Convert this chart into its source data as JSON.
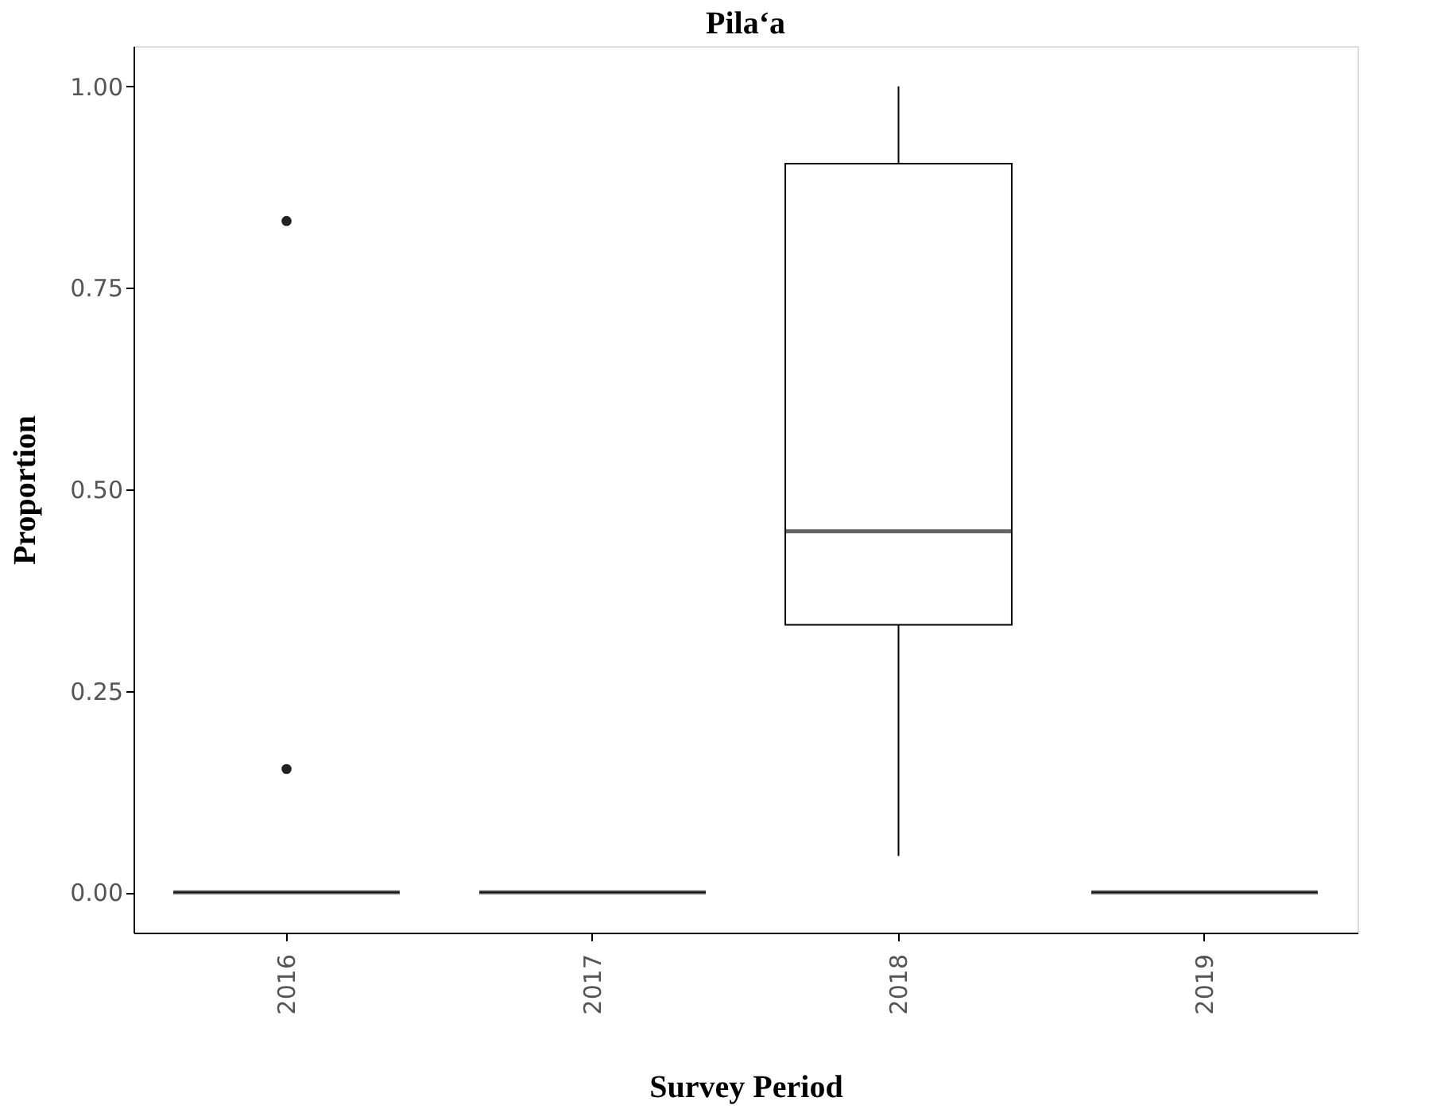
{
  "chart_data": {
    "type": "box",
    "title": "Pila‘a",
    "xlabel": "Survey Period",
    "ylabel": "Proportion",
    "categories": [
      "2016",
      "2017",
      "2018",
      "2019"
    ],
    "boxes": [
      {
        "low": 0,
        "q1": 0,
        "median": 0,
        "q3": 0,
        "high": 0,
        "outliers": [
          0.833,
          0.153
        ]
      },
      {
        "low": 0,
        "q1": 0,
        "median": 0,
        "q3": 0,
        "high": 0
      },
      {
        "low": 0.045,
        "q1": 0.332,
        "median": 0.448,
        "q3": 0.904,
        "high": 1.0
      },
      {
        "low": 0,
        "q1": 0,
        "median": 0,
        "q3": 0,
        "high": 0
      }
    ],
    "ylim": [
      -0.05,
      1.05
    ],
    "yticks": [
      {
        "value": 0,
        "label": "0.00"
      },
      {
        "value": 0.25,
        "label": "0.25"
      },
      {
        "value": 0.5,
        "label": "0.50"
      },
      {
        "value": 0.75,
        "label": "0.75"
      },
      {
        "value": 1,
        "label": "1.00"
      }
    ],
    "grid": false
  }
}
